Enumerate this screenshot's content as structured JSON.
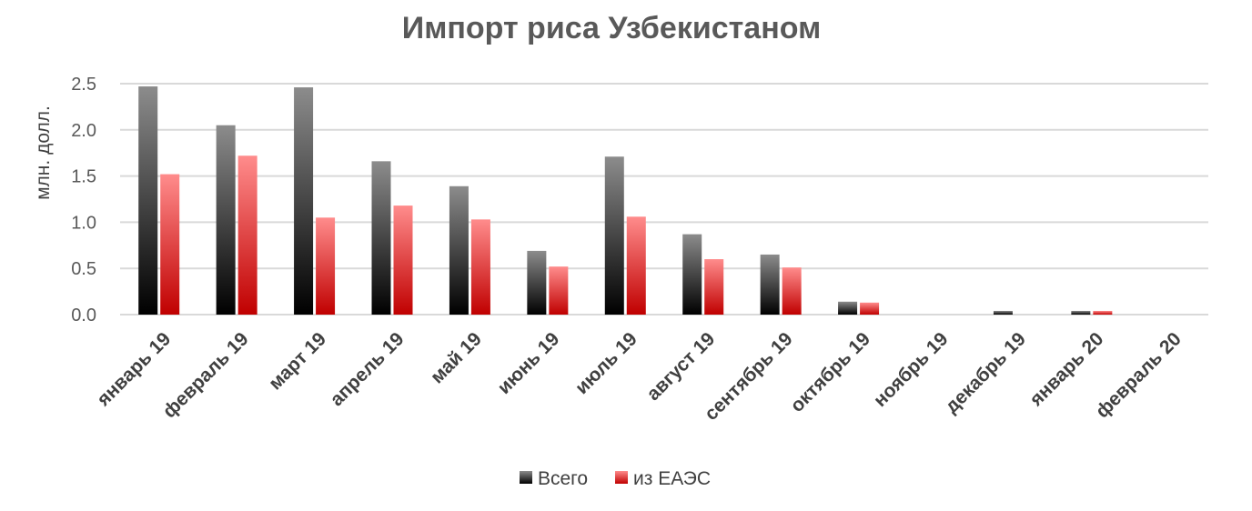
{
  "chart_data": {
    "type": "bar",
    "title": "Импорт риса Узбекистаном",
    "xlabel": "",
    "ylabel": "млн. долл.",
    "ylim": [
      0,
      2.5
    ],
    "yticks": [
      "0.0",
      "0.5",
      "1.0",
      "1.5",
      "2.0",
      "2.5"
    ],
    "grid": true,
    "legend_position": "bottom",
    "categories": [
      "январь 19",
      "февраль 19",
      "март 19",
      "апрель 19",
      "май 19",
      "июнь 19",
      "июль 19",
      "август 19",
      "сентябрь 19",
      "октябрь 19",
      "ноябрь 19",
      "декабрь 19",
      "январь 20",
      "февраль 20"
    ],
    "series": [
      {
        "name": "Всего",
        "color_top": "#8c8c8c",
        "color_bottom": "#000000",
        "values": [
          2.47,
          2.05,
          2.46,
          1.66,
          1.39,
          0.69,
          1.71,
          0.87,
          0.65,
          0.14,
          0.0,
          0.04,
          0.04,
          0.0
        ]
      },
      {
        "name": "из ЕАЭС",
        "color_top": "#ff8c8c",
        "color_bottom": "#c00000",
        "values": [
          1.52,
          1.72,
          1.05,
          1.18,
          1.03,
          0.52,
          1.06,
          0.6,
          0.51,
          0.13,
          0.0,
          0.0,
          0.04,
          0.0
        ]
      }
    ]
  }
}
